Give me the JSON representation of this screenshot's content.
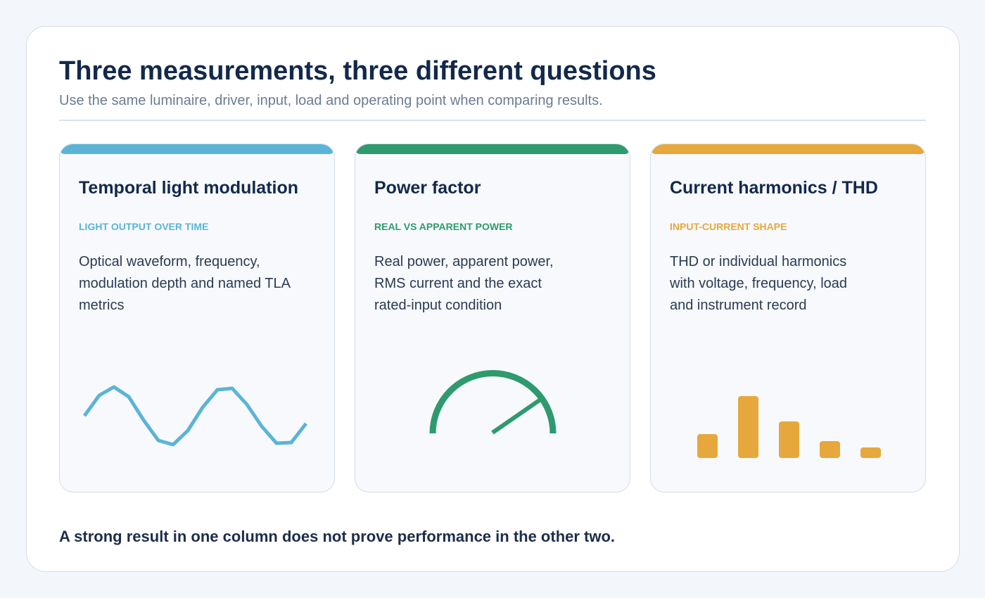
{
  "header": {
    "title": "Three measurements, three different questions",
    "subtitle": "Use the same luminaire, driver, input, load and operating point when comparing results."
  },
  "cards": [
    {
      "title": "Temporal light modulation",
      "tag": "LIGHT OUTPUT OVER TIME",
      "body": [
        "Optical waveform, frequency,",
        "modulation depth and named TLA",
        "metrics"
      ]
    },
    {
      "title": "Power factor",
      "tag": "REAL VS APPARENT POWER",
      "body": [
        "Real power, apparent power,",
        "RMS current and the exact",
        "rated-input condition"
      ]
    },
    {
      "title": "Current harmonics / THD",
      "tag": "INPUT-CURRENT SHAPE",
      "body": [
        "THD or individual harmonics",
        "with voltage, frequency, load",
        "and instrument record"
      ]
    }
  ],
  "footer": "A strong result in one column does not prove performance in the other two."
}
